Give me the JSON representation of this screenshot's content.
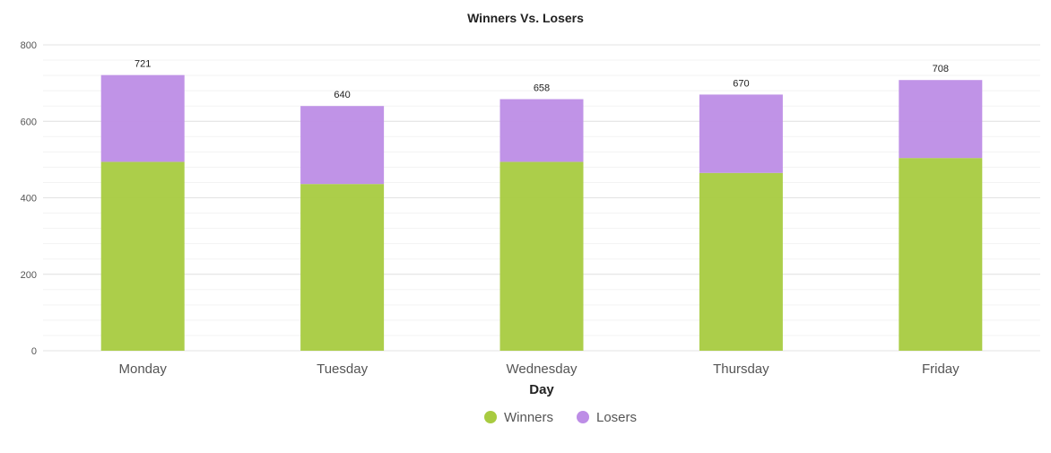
{
  "chart_data": {
    "type": "bar",
    "stacked": true,
    "title": "Winners Vs. Losers",
    "xlabel": "Day",
    "ylabel": "",
    "categories": [
      "Monday",
      "Tuesday",
      "Wednesday",
      "Thursday",
      "Friday"
    ],
    "series": [
      {
        "name": "Winners",
        "color": "#a8cb40",
        "values": [
          494,
          436,
          494,
          465,
          504
        ]
      },
      {
        "name": "Losers",
        "color": "#bd8de6",
        "values": [
          227,
          204,
          164,
          205,
          204
        ]
      }
    ],
    "totals": [
      721,
      640,
      658,
      670,
      708
    ],
    "ylim": [
      0,
      800
    ],
    "yticks": [
      0,
      200,
      400,
      600,
      800
    ],
    "grid": true,
    "legend_position": "bottom"
  }
}
